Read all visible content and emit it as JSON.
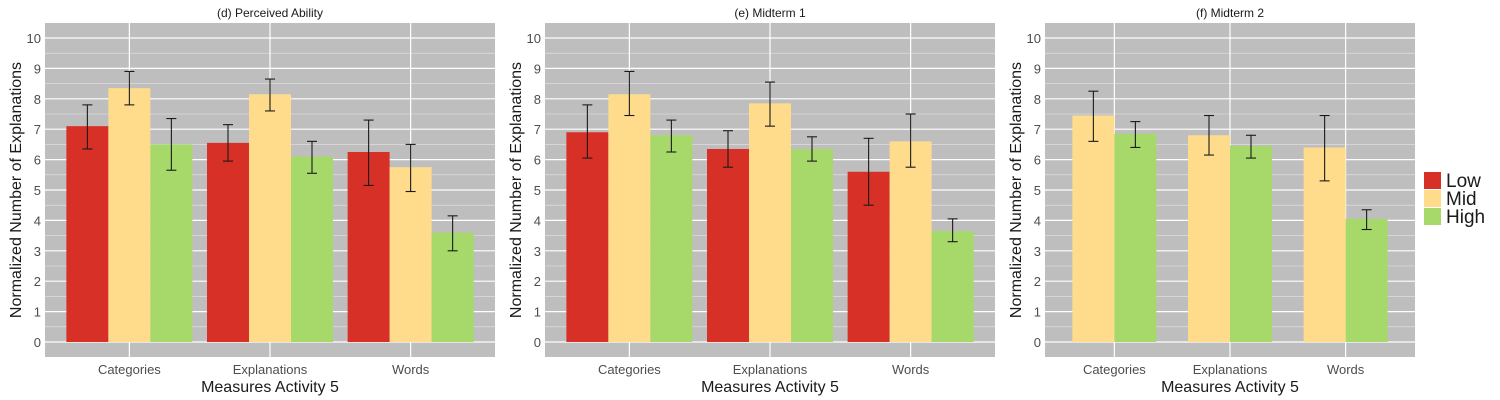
{
  "colors": {
    "panel_bg": "#bebebe",
    "grid": "#ffffff",
    "Low": "#d73027",
    "Mid": "#fedc8c",
    "High": "#a6d96a",
    "errorbar": "#1a1a1a"
  },
  "legend": {
    "items": [
      "Low",
      "Mid",
      "High"
    ],
    "position": "right"
  },
  "chart_data": [
    {
      "type": "bar",
      "title": "(d) Perceived Ability",
      "xlabel": "Measures Activity 5",
      "ylabel": "Normalized Number of Explanations",
      "ylim": [
        0,
        10
      ],
      "yticks": [
        "0",
        "1",
        "2",
        "3",
        "4",
        "5",
        "6",
        "7",
        "8",
        "9",
        "10"
      ],
      "categories": [
        "Categories",
        "Explanations",
        "Words"
      ],
      "grid": true,
      "series": [
        {
          "name": "Low",
          "values": [
            7.1,
            6.55,
            6.25
          ],
          "err_low": [
            6.35,
            5.95,
            5.15
          ],
          "err_high": [
            7.8,
            7.15,
            7.3
          ]
        },
        {
          "name": "Mid",
          "values": [
            8.35,
            8.15,
            5.75
          ],
          "err_low": [
            7.8,
            7.6,
            4.95
          ],
          "err_high": [
            8.9,
            8.65,
            6.5
          ]
        },
        {
          "name": "High",
          "values": [
            6.5,
            6.1,
            3.6
          ],
          "err_low": [
            5.65,
            5.55,
            3.0
          ],
          "err_high": [
            7.35,
            6.6,
            4.15
          ]
        }
      ]
    },
    {
      "type": "bar",
      "title": "(e) Midterm 1",
      "xlabel": "Measures Activity 5",
      "ylabel": "Normalized Number of Explanations",
      "ylim": [
        0,
        10
      ],
      "yticks": [
        "0",
        "1",
        "2",
        "3",
        "4",
        "5",
        "6",
        "7",
        "8",
        "9",
        "10"
      ],
      "categories": [
        "Categories",
        "Explanations",
        "Words"
      ],
      "grid": true,
      "series": [
        {
          "name": "Low",
          "values": [
            6.9,
            6.35,
            5.6
          ],
          "err_low": [
            6.05,
            5.75,
            4.5
          ],
          "err_high": [
            7.8,
            6.95,
            6.7
          ]
        },
        {
          "name": "Mid",
          "values": [
            8.15,
            7.85,
            6.6
          ],
          "err_low": [
            7.45,
            7.1,
            5.75
          ],
          "err_high": [
            8.9,
            8.55,
            7.5
          ]
        },
        {
          "name": "High",
          "values": [
            6.8,
            6.35,
            3.65
          ],
          "err_low": [
            6.25,
            5.95,
            3.3
          ],
          "err_high": [
            7.3,
            6.75,
            4.05
          ]
        }
      ]
    },
    {
      "type": "bar",
      "title": "(f) Midterm 2",
      "xlabel": "Measures Activity 5",
      "ylabel": "Normalized Number of Explanations",
      "ylim": [
        0,
        10
      ],
      "yticks": [
        "0",
        "1",
        "2",
        "3",
        "4",
        "5",
        "6",
        "7",
        "8",
        "9",
        "10"
      ],
      "categories": [
        "Categories",
        "Explanations",
        "Words"
      ],
      "grid": true,
      "series": [
        {
          "name": "Mid",
          "values": [
            7.45,
            6.8,
            6.4
          ],
          "err_low": [
            6.6,
            6.15,
            5.3
          ],
          "err_high": [
            8.25,
            7.45,
            7.45
          ]
        },
        {
          "name": "High",
          "values": [
            6.85,
            6.45,
            4.05
          ],
          "err_low": [
            6.4,
            6.05,
            3.7
          ],
          "err_high": [
            7.25,
            6.8,
            4.35
          ]
        }
      ]
    }
  ]
}
